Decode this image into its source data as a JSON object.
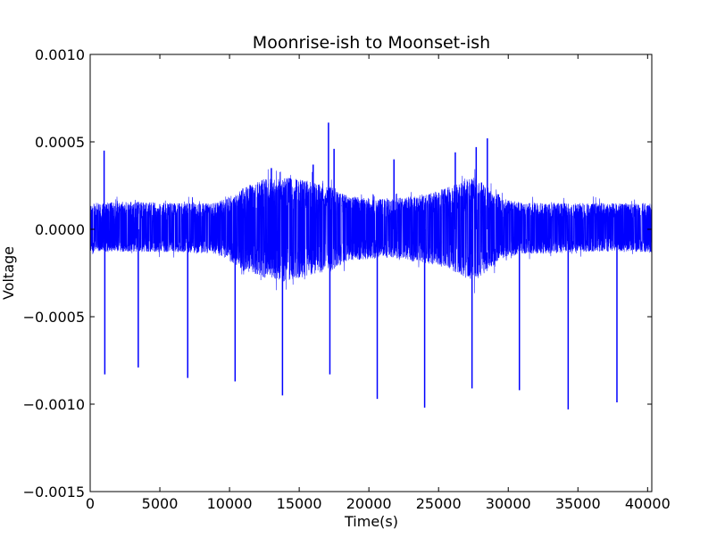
{
  "chart_data": {
    "type": "line",
    "title": "Moonrise-ish to Moonset-ish",
    "xlabel": "Time(s)",
    "ylabel": "Voltage",
    "xlim": [
      0,
      40300
    ],
    "ylim": [
      -0.0015,
      0.001
    ],
    "xticks": [
      0,
      5000,
      10000,
      15000,
      20000,
      25000,
      30000,
      35000,
      40000
    ],
    "xtick_labels": [
      "0",
      "5000",
      "10000",
      "15000",
      "20000",
      "25000",
      "30000",
      "35000",
      "40000"
    ],
    "yticks": [
      -0.0015,
      -0.001,
      -0.0005,
      0.0,
      0.0005,
      0.001
    ],
    "ytick_labels": [
      "−0.0015",
      "−0.0010",
      "−0.0005",
      "0.0000",
      "0.0005",
      "0.0010"
    ],
    "grid": false,
    "series_color": "#0000ff",
    "series": [
      {
        "values_description": "noise_envelope",
        "x": [
          0,
          3000,
          6000,
          9000,
          10000,
          11000,
          12500,
          14000,
          15500,
          16500,
          17500,
          18500,
          20000,
          21500,
          23000,
          24500,
          26000,
          27500,
          28500,
          29500,
          31000,
          33000,
          35000,
          37000,
          39000,
          40300
        ],
        "upper": [
          0.00015,
          0.00016,
          0.00015,
          0.00015,
          0.00019,
          0.00024,
          0.00029,
          0.0003,
          0.00028,
          0.00026,
          0.00024,
          0.00019,
          0.00018,
          0.00017,
          0.00019,
          0.00021,
          0.00025,
          0.0003,
          0.00025,
          0.00018,
          0.00015,
          0.00015,
          0.00015,
          0.00015,
          0.00015,
          0.00015
        ],
        "lower": [
          -0.00013,
          -0.00013,
          -0.00013,
          -0.00014,
          -0.00018,
          -0.00024,
          -0.00028,
          -0.0003,
          -0.00027,
          -0.00025,
          -0.00023,
          -0.00018,
          -0.00017,
          -0.00016,
          -0.00018,
          -0.0002,
          -0.00024,
          -0.0003,
          -0.00024,
          -0.00017,
          -0.00014,
          -0.00014,
          -0.00013,
          -0.00013,
          -0.00013,
          -0.00013
        ]
      },
      {
        "values_description": "negative_spikes",
        "x": [
          1050,
          3450,
          7000,
          10400,
          13800,
          17200,
          20600,
          24000,
          27400,
          30800,
          34300,
          37800
        ],
        "y": [
          -0.00083,
          -0.00079,
          -0.00085,
          -0.00087,
          -0.00095,
          -0.00083,
          -0.00097,
          -0.00102,
          -0.00091,
          -0.00092,
          -0.00103,
          -0.00099
        ]
      },
      {
        "values_description": "positive_peaks",
        "x": [
          1000,
          13000,
          16000,
          17100,
          17500,
          21800,
          26200,
          27700,
          28500,
          29300
        ],
        "y": [
          0.00045,
          0.00035,
          0.00037,
          0.00061,
          0.00046,
          0.0004,
          0.00044,
          0.00047,
          0.00052,
          0.0002
        ]
      }
    ]
  }
}
